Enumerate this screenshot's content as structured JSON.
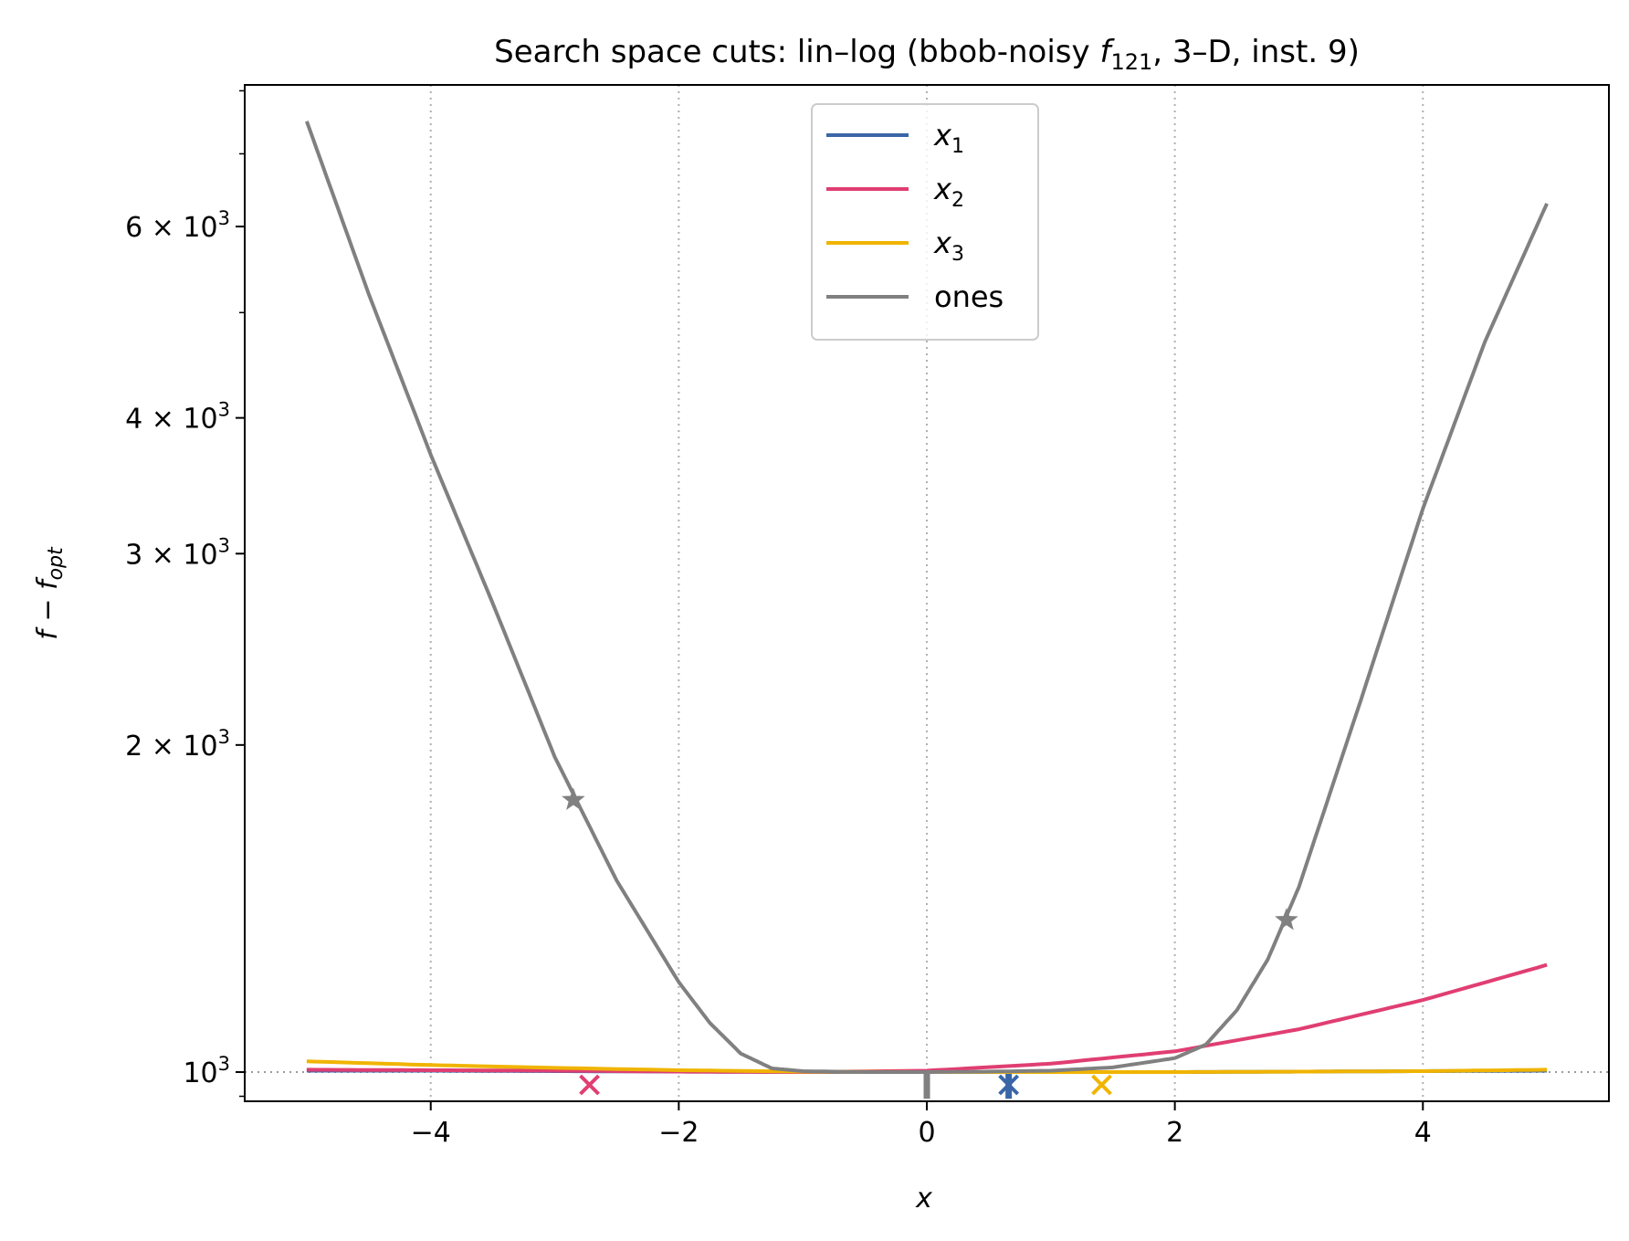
{
  "chart_data": {
    "type": "line",
    "title": "Search space cuts: lin–log (bbob-noisy f121, 3–D, inst. 9)",
    "title_parts": {
      "prefix": "Search space cuts: lin–log (bbob-noisy ",
      "f": "f",
      "sub": "121",
      "suffix": ", 3–D, inst. 9)"
    },
    "xlabel": "x",
    "ylabel": "f − f_opt",
    "ylabel_parts": {
      "main": "f − f",
      "sub": "opt"
    },
    "x_scale": "linear",
    "y_scale": "log",
    "xlim": [
      -5.5,
      5.5
    ],
    "ylim": [
      940,
      8100
    ],
    "x_ticks": [
      {
        "value": -4,
        "label": "−4"
      },
      {
        "value": -2,
        "label": "−2"
      },
      {
        "value": 0,
        "label": "0"
      },
      {
        "value": 2,
        "label": "2"
      },
      {
        "value": 4,
        "label": "4"
      }
    ],
    "y_ticks": [
      {
        "value": 1000,
        "base": "10",
        "exp": "3",
        "mult": ""
      },
      {
        "value": 2000,
        "base": "10",
        "exp": "3",
        "mult": "2 × "
      },
      {
        "value": 3000,
        "base": "10",
        "exp": "3",
        "mult": "3 × "
      },
      {
        "value": 4000,
        "base": "10",
        "exp": "3",
        "mult": "4 × "
      },
      {
        "value": 6000,
        "base": "10",
        "exp": "3",
        "mult": "6 × "
      }
    ],
    "y_minor_ticks": [
      5000,
      7000,
      8000,
      950
    ],
    "grid": "vertical dotted",
    "reference_line": {
      "y": 1000,
      "style": "dotted"
    },
    "legend_position": "top-center",
    "series": [
      {
        "name": "x1",
        "label_main": "x",
        "label_sub": "1",
        "color": "#3a66a8",
        "x": [
          -5,
          -4,
          -3,
          -2,
          -1,
          0,
          0.5,
          0.66,
          1,
          2,
          3,
          4,
          5
        ],
        "y": [
          1003,
          1003,
          1002,
          1001,
          1000,
          1000,
          1000,
          1000,
          1000,
          1000,
          1001,
          1002,
          1003
        ],
        "spike": {
          "x": 0.66,
          "y": 945
        },
        "marker": {
          "symbol": "x",
          "x": 0.66,
          "y": 950
        }
      },
      {
        "name": "x2",
        "label_main": "x",
        "label_sub": "2",
        "color": "#e03e72",
        "x": [
          -5,
          -4,
          -3,
          -2,
          -1,
          0,
          1,
          2,
          3,
          4,
          5
        ],
        "y": [
          1005,
          1004,
          1003,
          1001,
          1000,
          1003,
          1018,
          1045,
          1095,
          1165,
          1255
        ],
        "marker": {
          "symbol": "x",
          "x": -2.72,
          "y": 950
        }
      },
      {
        "name": "x3",
        "label_main": "x",
        "label_sub": "3",
        "color": "#f0b400",
        "x": [
          -5,
          -4,
          -3,
          -2,
          -1,
          0,
          1,
          2,
          3,
          4,
          5
        ],
        "y": [
          1023,
          1015,
          1009,
          1004,
          1001,
          1000,
          1000,
          1000,
          1001,
          1002,
          1005
        ],
        "marker": {
          "symbol": "x",
          "x": 1.41,
          "y": 950
        }
      },
      {
        "name": "ones",
        "label_main": "ones",
        "label_sub": "",
        "color": "#808080",
        "x": [
          -5,
          -4.5,
          -4,
          -3.5,
          -3,
          -2.5,
          -2,
          -1.75,
          -1.5,
          -1.25,
          -1,
          -0.5,
          0,
          0.5,
          1,
          1.5,
          2,
          2.25,
          2.5,
          2.75,
          3,
          3.5,
          4,
          4.5,
          5
        ],
        "y": [
          7500,
          5200,
          3700,
          2700,
          1950,
          1500,
          1210,
          1110,
          1040,
          1008,
          1002,
          1000,
          1000,
          1001,
          1003,
          1010,
          1030,
          1060,
          1140,
          1270,
          1480,
          2200,
          3300,
          4700,
          6300
        ],
        "spike": {
          "x": 0.0,
          "y": 945
        },
        "star_markers": [
          {
            "x": -2.85,
            "y": 1780
          },
          {
            "x": 2.9,
            "y": 1380
          }
        ]
      }
    ]
  }
}
